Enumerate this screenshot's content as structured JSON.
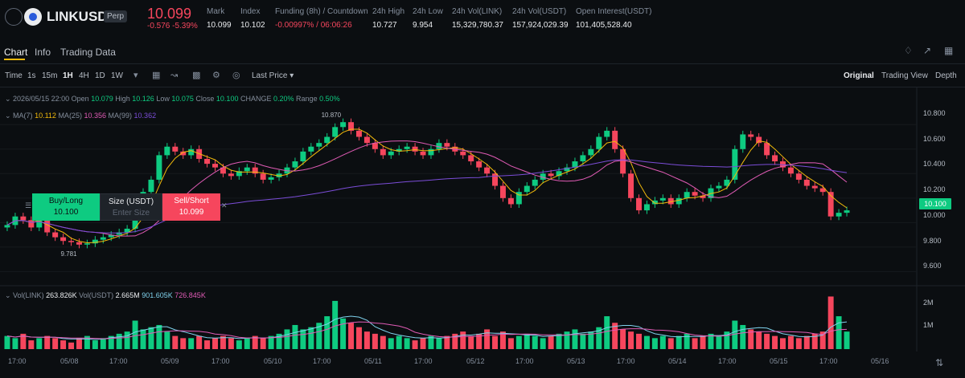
{
  "header": {
    "symbol": "LINKUSDT",
    "contract_type": "Perp",
    "last_price": "10.099",
    "change": "-0.576 -5.39%",
    "stats": [
      {
        "label": "Mark",
        "value": "10.099"
      },
      {
        "label": "Index",
        "value": "10.102"
      },
      {
        "label": "Funding (8h) / Countdown",
        "value": "-0.00997% / 06:06:26"
      },
      {
        "label": "24h High",
        "value": "10.727"
      },
      {
        "label": "24h Low",
        "value": "9.954"
      },
      {
        "label": "24h Vol(LINK)",
        "value": "15,329,780.37"
      },
      {
        "label": "24h Vol(USDT)",
        "value": "157,924,029.39"
      },
      {
        "label": "Open Interest(USDT)",
        "value": "101,405,528.40"
      }
    ]
  },
  "tabs": [
    "Chart",
    "Info",
    "Trading Data"
  ],
  "toolbar": {
    "time_label": "Time",
    "intervals": [
      "1s",
      "15m",
      "1H",
      "4H",
      "1D",
      "1W"
    ],
    "active_interval": "1H",
    "price_type": "Last Price",
    "views": [
      "Original",
      "Trading View",
      "Depth"
    ],
    "active_view": "Original"
  },
  "ohlc": {
    "date": "2026/05/15 22:00",
    "open_label": "Open",
    "open": "10.079",
    "high_label": "High",
    "high": "10.126",
    "low_label": "Low",
    "low": "10.075",
    "close_label": "Close",
    "close": "10.100",
    "change_label": "CHANGE",
    "change": "0.20%",
    "range_label": "Range",
    "range": "0.50%"
  },
  "ma": {
    "ma7_label": "MA(7)",
    "ma7": "10.112",
    "ma25_label": "MA(25)",
    "ma25": "10.356",
    "ma99_label": "MA(99)",
    "ma99": "10.362"
  },
  "order_panel": {
    "buy_label": "Buy/Long",
    "buy_price": "10.100",
    "size_label": "Size (USDT)",
    "size_placeholder": "Enter Size",
    "sell_label": "Sell/Short",
    "sell_price": "10.099"
  },
  "volume": {
    "vol_link_label": "Vol(LINK)",
    "vol_link": "263.826K",
    "vol_usdt_label": "Vol(USDT)",
    "vol_usdt": "2.665M",
    "ma1": "901.605K",
    "ma2": "726.845K"
  },
  "price_axis": [
    "10.800",
    "10.600",
    "10.400",
    "10.200",
    "10.000",
    "9.800",
    "9.600"
  ],
  "current_price_tag": "10.100",
  "volume_axis": [
    "2M",
    "1M"
  ],
  "time_axis": [
    "17:00",
    "05/08",
    "17:00",
    "05/09",
    "17:00",
    "05/10",
    "17:00",
    "05/11",
    "17:00",
    "05/12",
    "17:00",
    "05/13",
    "17:00",
    "05/14",
    "17:00",
    "05/15",
    "17:00",
    "05/16"
  ],
  "annotations": {
    "high_marker": "10.870",
    "low_marker": "9.781"
  },
  "colors": {
    "up": "#0ecb81",
    "down": "#f6465d",
    "ma7": "#f0b90b",
    "ma25": "#e05bb5",
    "ma99": "#7b4dd8",
    "accent": "#f0b90b"
  },
  "chart_data": {
    "type": "candlestick",
    "interval": "1H",
    "ylim": [
      9.55,
      10.9
    ],
    "close_path": [
      9.98,
      10.05,
      10.02,
      9.96,
      10.03,
      9.92,
      9.88,
      9.85,
      9.84,
      9.82,
      9.83,
      9.86,
      9.88,
      9.9,
      9.92,
      9.95,
      10.05,
      10.25,
      10.35,
      10.55,
      10.62,
      10.58,
      10.55,
      10.6,
      10.52,
      10.48,
      10.45,
      10.4,
      10.38,
      10.42,
      10.45,
      10.4,
      10.35,
      10.37,
      10.4,
      10.45,
      10.5,
      10.58,
      10.62,
      10.65,
      10.7,
      10.78,
      10.82,
      10.75,
      10.7,
      10.65,
      10.6,
      10.55,
      10.58,
      10.6,
      10.62,
      10.58,
      10.55,
      10.6,
      10.65,
      10.62,
      10.58,
      10.55,
      10.5,
      10.45,
      10.4,
      10.3,
      10.2,
      10.15,
      10.25,
      10.3,
      10.35,
      10.4,
      10.38,
      10.42,
      10.45,
      10.5,
      10.55,
      10.6,
      10.7,
      10.75,
      10.6,
      10.4,
      10.2,
      10.1,
      10.15,
      10.18,
      10.2,
      10.15,
      10.2,
      10.25,
      10.22,
      10.2,
      10.28,
      10.3,
      10.35,
      10.6,
      10.72,
      10.7,
      10.65,
      10.55,
      10.5,
      10.45,
      10.4,
      10.35,
      10.3,
      10.28,
      10.25,
      10.05,
      10.08,
      10.1
    ],
    "volume_path": [
      0.6,
      0.5,
      0.7,
      0.4,
      0.5,
      0.6,
      0.5,
      0.4,
      0.3,
      0.5,
      0.6,
      0.4,
      0.5,
      0.6,
      0.7,
      0.8,
      1.3,
      0.9,
      1.0,
      1.1,
      0.8,
      0.6,
      0.5,
      0.5,
      0.6,
      0.4,
      0.5,
      0.6,
      0.5,
      0.4,
      0.5,
      0.6,
      0.5,
      0.6,
      0.7,
      0.9,
      1.1,
      0.9,
      1.0,
      1.2,
      1.5,
      2.2,
      1.4,
      1.2,
      1.0,
      0.8,
      0.7,
      0.6,
      0.5,
      0.6,
      0.5,
      0.4,
      0.5,
      0.6,
      0.5,
      0.6,
      0.7,
      0.8,
      0.6,
      0.7,
      0.9,
      0.6,
      0.8,
      0.5,
      0.6,
      0.7,
      0.6,
      0.5,
      0.6,
      0.7,
      0.8,
      0.9,
      0.7,
      0.8,
      1.0,
      1.5,
      1.2,
      0.9,
      0.8,
      0.7,
      0.6,
      0.5,
      0.6,
      0.5,
      0.6,
      0.7,
      0.5,
      0.6,
      0.7,
      0.6,
      0.8,
      1.3,
      1.1,
      0.9,
      0.8,
      0.7,
      0.6,
      0.5,
      0.6,
      0.5,
      0.6,
      0.7,
      0.8,
      2.4,
      1.5,
      0.8
    ]
  }
}
